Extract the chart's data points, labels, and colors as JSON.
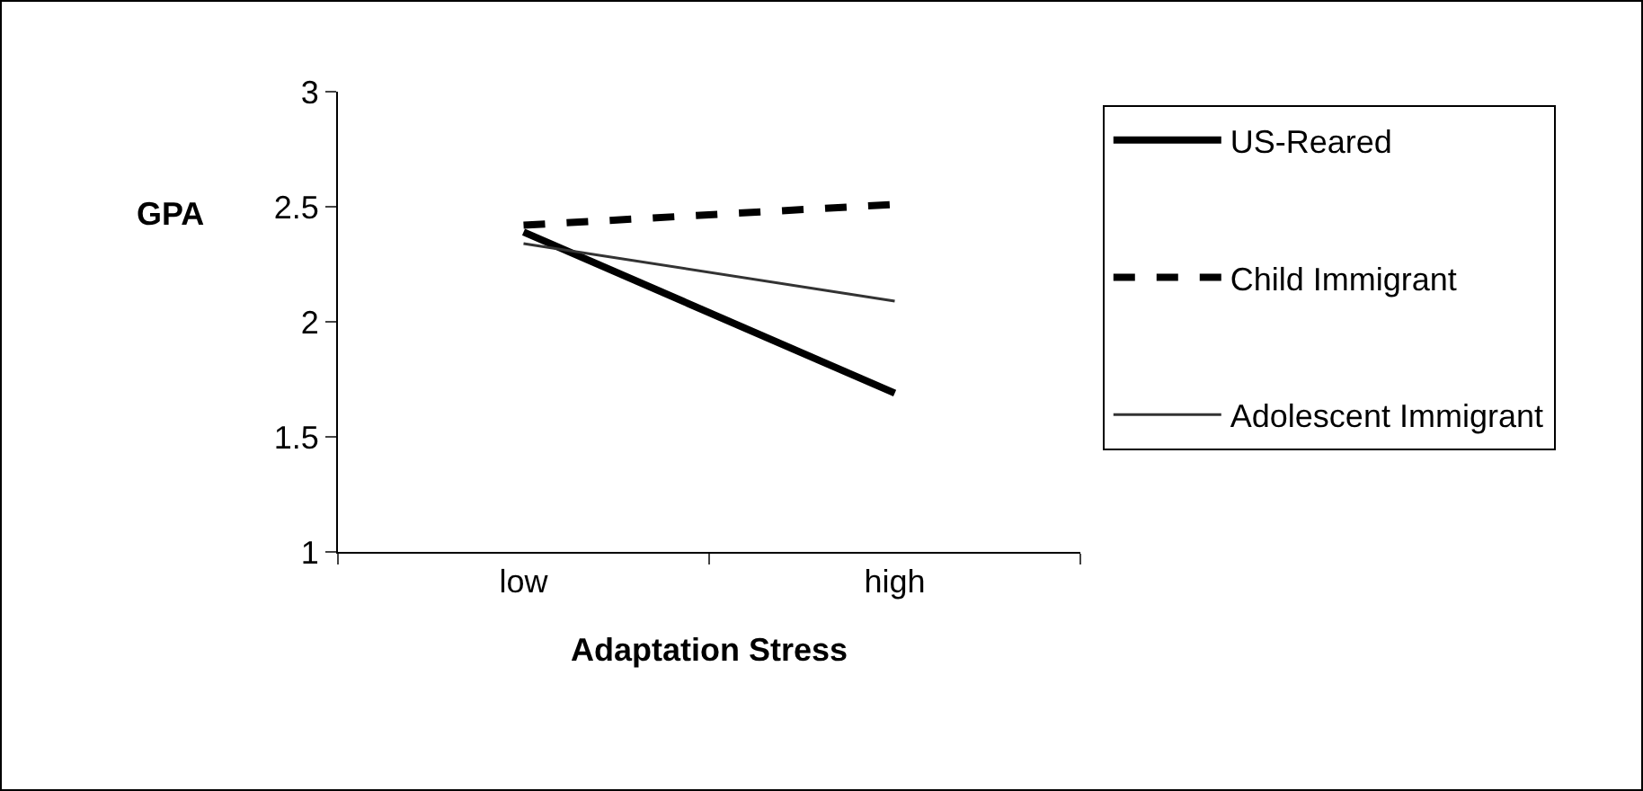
{
  "chart_data": {
    "type": "line",
    "xlabel": "Adaptation Stress",
    "ylabel": "GPA",
    "categories": [
      "low",
      "high"
    ],
    "series": [
      {
        "name": "US-Reared",
        "color": "#000000",
        "values": [
          2.39,
          1.69
        ],
        "line_style": "solid"
      },
      {
        "name": "Child Immigrant",
        "color": "#000000",
        "values": [
          2.42,
          2.51
        ],
        "line_style": "dashed"
      },
      {
        "name": "Adolescent Immigrant",
        "color": "#333333",
        "values": [
          2.34,
          2.09
        ],
        "line_style": "solid"
      }
    ],
    "ylim": [
      1,
      3
    ],
    "yticks": [
      1,
      1.5,
      2,
      2.5,
      3
    ],
    "grid": false,
    "legend": "right",
    "marker": "none"
  }
}
